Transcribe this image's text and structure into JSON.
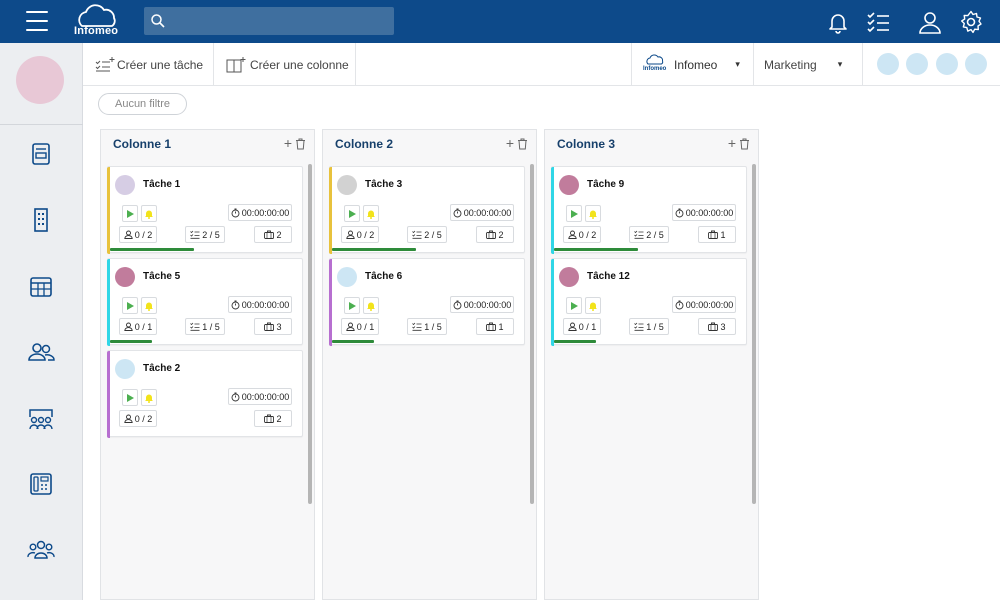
{
  "header": {
    "logo_text": "Infomeo",
    "search": {
      "placeholder": "",
      "value": ""
    },
    "icons": [
      "menu-icon",
      "search-icon",
      "bell-icon",
      "checklist-icon",
      "user-icon",
      "gear-icon"
    ]
  },
  "sidebar": {
    "icons": [
      "document-icon",
      "building-icon",
      "calendar-table-icon",
      "users-icon",
      "meeting-icon",
      "directory-icon",
      "team-icon"
    ]
  },
  "toolbar": {
    "create_task": "Créer une tâche",
    "create_column": "Créer une colonne",
    "company": "Infomeo",
    "company_logo_text": "Infomeo",
    "department": "Marketing",
    "caret": "▾"
  },
  "filter": {
    "label": "Aucun filtre"
  },
  "columns": [
    {
      "title": "Colonne 1",
      "cards": [
        {
          "title": "Tâche 1",
          "timer": "00:00:00:00",
          "users": "0 / 2",
          "checks": "2 / 5",
          "bag": "2",
          "bar_color": "#e8c23c",
          "avatar_color": "#d6cde4",
          "progress": 0.4,
          "has_checks": true
        },
        {
          "title": "Tâche 5",
          "timer": "00:00:00:00",
          "users": "0 / 1",
          "checks": "1 / 5",
          "bag": "3",
          "bar_color": "#30d6e6",
          "avatar_color": "#c17c9c",
          "progress": 0.2,
          "has_checks": true
        },
        {
          "title": "Tâche 2",
          "timer": "00:00:00:00",
          "users": "0 / 2",
          "checks": "",
          "bag": "2",
          "bar_color": "#b76fd0",
          "avatar_color": "#cde6f4",
          "progress": 0,
          "has_checks": false
        }
      ]
    },
    {
      "title": "Colonne 2",
      "cards": [
        {
          "title": "Tâche 3",
          "timer": "00:00:00:00",
          "users": "0 / 2",
          "checks": "2 / 5",
          "bag": "2",
          "bar_color": "#e8c23c",
          "avatar_color": "#d2d2d2",
          "progress": 0.4,
          "has_checks": true
        },
        {
          "title": "Tâche 6",
          "timer": "00:00:00:00",
          "users": "0 / 1",
          "checks": "1 / 5",
          "bag": "1",
          "bar_color": "#b76fd0",
          "avatar_color": "#cde6f4",
          "progress": 0.2,
          "has_checks": true
        }
      ]
    },
    {
      "title": "Colonne 3",
      "cards": [
        {
          "title": "Tâche 9",
          "timer": "00:00:00:00",
          "users": "0 / 2",
          "checks": "2 / 5",
          "bag": "1",
          "bar_color": "#30d6e6",
          "avatar_color": "#c17c9c",
          "progress": 0.4,
          "has_checks": true
        },
        {
          "title": "Tâche 12",
          "timer": "00:00:00:00",
          "users": "0 / 1",
          "checks": "1 / 5",
          "bag": "3",
          "bar_color": "#30d6e6",
          "avatar_color": "#c17c9c",
          "progress": 0.2,
          "has_checks": true
        }
      ]
    }
  ],
  "colors": {
    "header": "#0d4a8a",
    "accent": "#17406b",
    "progress": "#2e8b3a",
    "play": "#4caf50",
    "bell": "#f2e31b"
  }
}
